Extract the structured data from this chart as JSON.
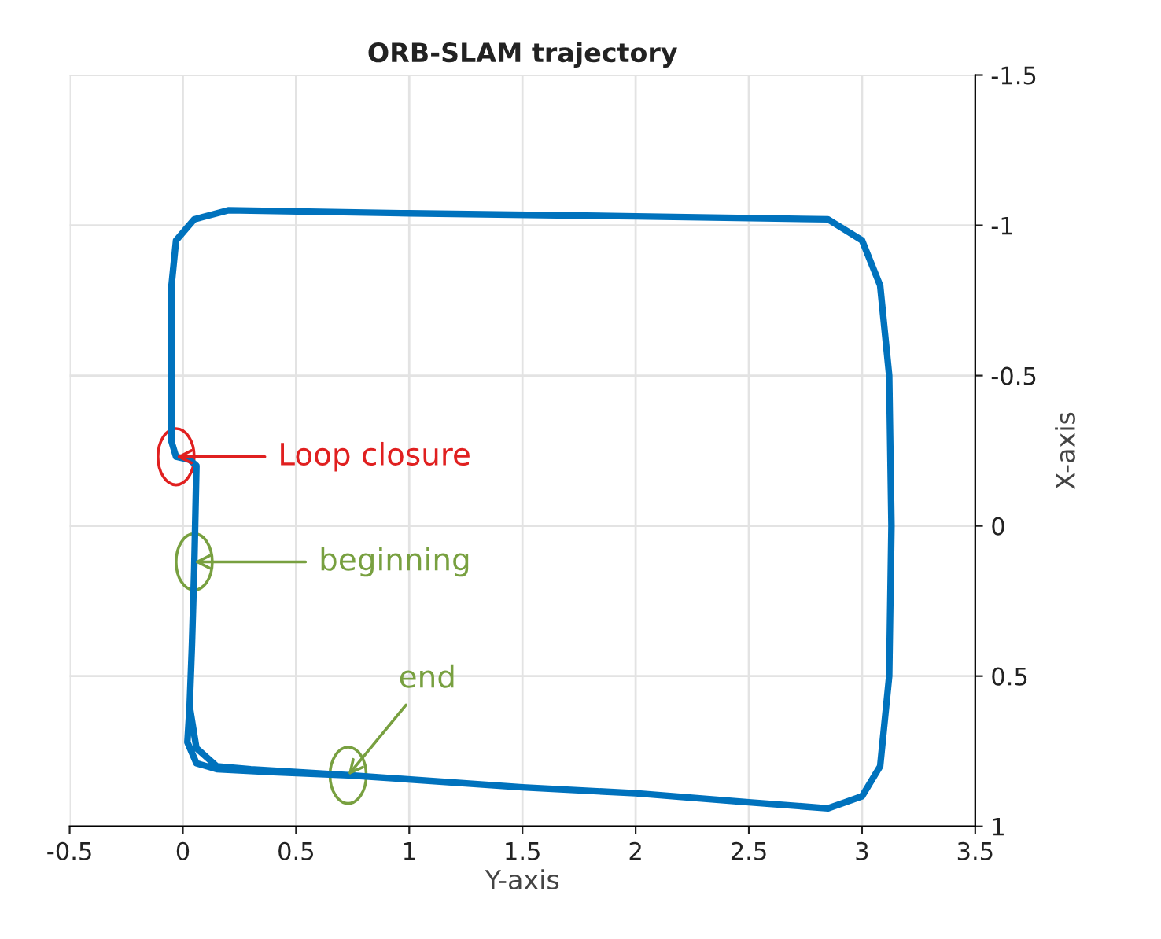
{
  "chart_data": {
    "type": "line",
    "title": "ORB-SLAM trajectory",
    "xlabel": "Y-axis",
    "ylabel": "X-axis",
    "xlim": [
      -0.5,
      3.5
    ],
    "xticks": [
      -0.5,
      0,
      0.5,
      1,
      1.5,
      2,
      2.5,
      3,
      3.5
    ],
    "ylim": [
      1,
      -1.5
    ],
    "yticks": [
      -1.5,
      -1,
      -0.5,
      0,
      0.5,
      1
    ],
    "grid": true,
    "series": [
      {
        "color": "#0072bd",
        "x": [
          0.05,
          0.04,
          0.03,
          0.06,
          0.15,
          0.3,
          0.73,
          1.5,
          2.0,
          2.5,
          2.85,
          3.0,
          3.08,
          3.12,
          3.13,
          3.12,
          3.08,
          3.0,
          2.85,
          2.0,
          1.0,
          0.2,
          0.05,
          -0.03,
          -0.05,
          -0.05,
          -0.05,
          -0.03,
          0.03,
          0.06,
          0.05,
          0.04,
          0.03,
          0.02,
          0.06,
          0.15,
          0.4,
          0.73
        ],
        "values": [
          0.15,
          0.4,
          0.6,
          0.74,
          0.8,
          0.81,
          0.83,
          0.87,
          0.89,
          0.92,
          0.94,
          0.9,
          0.8,
          0.5,
          0.0,
          -0.5,
          -0.8,
          -0.95,
          -1.02,
          -1.03,
          -1.04,
          -1.05,
          -1.02,
          -0.95,
          -0.8,
          -0.5,
          -0.28,
          -0.23,
          -0.22,
          -0.2,
          0.15,
          0.4,
          0.6,
          0.72,
          0.79,
          0.81,
          0.82,
          0.83
        ]
      }
    ],
    "annotations": [
      {
        "text": "Loop closure",
        "x": -0.03,
        "y": -0.23
      },
      {
        "text": "beginning",
        "x": 0.05,
        "y": 0.12
      },
      {
        "text": "end",
        "x": 0.73,
        "y": 0.83
      }
    ]
  }
}
